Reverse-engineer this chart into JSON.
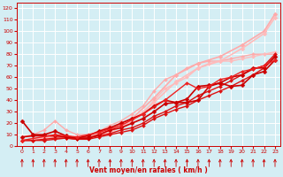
{
  "xlabel": "Vent moyen/en rafales ( km/h )",
  "bg_color": "#d4eef4",
  "grid_color": "#ffffff",
  "xlim": [
    -0.5,
    23.5
  ],
  "ylim": [
    0,
    125
  ],
  "yticks": [
    0,
    10,
    20,
    30,
    40,
    50,
    60,
    70,
    80,
    90,
    100,
    110,
    120
  ],
  "xticks": [
    0,
    1,
    2,
    3,
    4,
    5,
    6,
    7,
    8,
    9,
    10,
    11,
    12,
    13,
    14,
    15,
    16,
    17,
    18,
    19,
    20,
    21,
    22,
    23
  ],
  "lines": [
    {
      "x": [
        0,
        1,
        2,
        3,
        4,
        5,
        6,
        7,
        8,
        9,
        10,
        11,
        12,
        13,
        14,
        15,
        16,
        17,
        18,
        19,
        20,
        21,
        22,
        23
      ],
      "y": [
        5,
        5,
        5,
        6,
        7,
        6,
        6,
        8,
        10,
        12,
        14,
        18,
        24,
        28,
        32,
        35,
        40,
        44,
        48,
        52,
        57,
        62,
        68,
        78
      ],
      "color": "#dd1111",
      "lw": 1.0,
      "marker": "D",
      "ms": 2.0
    },
    {
      "x": [
        0,
        1,
        2,
        3,
        4,
        5,
        6,
        7,
        8,
        9,
        10,
        11,
        12,
        13,
        14,
        15,
        16,
        17,
        18,
        19,
        20,
        21,
        22,
        23
      ],
      "y": [
        5,
        5,
        6,
        7,
        7,
        6,
        7,
        9,
        11,
        14,
        16,
        20,
        26,
        30,
        35,
        38,
        44,
        48,
        52,
        57,
        62,
        67,
        70,
        80
      ],
      "color": "#dd1111",
      "lw": 1.0,
      "marker": "D",
      "ms": 2.0
    },
    {
      "x": [
        0,
        1,
        2,
        3,
        4,
        5,
        6,
        7,
        8,
        9,
        10,
        11,
        12,
        13,
        14,
        15,
        16,
        17,
        18,
        19,
        20,
        21,
        22,
        23
      ],
      "y": [
        8,
        9,
        9,
        9,
        8,
        7,
        7,
        10,
        14,
        16,
        20,
        24,
        30,
        37,
        38,
        38,
        40,
        52,
        55,
        52,
        53,
        62,
        65,
        75
      ],
      "color": "#cc0000",
      "lw": 1.2,
      "marker": "D",
      "ms": 2.5
    },
    {
      "x": [
        0,
        1,
        2,
        3,
        4,
        5,
        6,
        7,
        8,
        9,
        10,
        11,
        12,
        13,
        14,
        15,
        16,
        17,
        18,
        19,
        20,
        21,
        22,
        23
      ],
      "y": [
        22,
        10,
        10,
        13,
        9,
        7,
        9,
        13,
        16,
        20,
        24,
        28,
        35,
        40,
        38,
        41,
        52,
        53,
        55,
        60,
        62,
        68,
        68,
        78
      ],
      "color": "#cc0000",
      "lw": 1.2,
      "marker": "D",
      "ms": 2.5
    },
    {
      "x": [
        0,
        3,
        5,
        7,
        9,
        11,
        13,
        15,
        16,
        17,
        18,
        19,
        20,
        21,
        22,
        23
      ],
      "y": [
        5,
        10,
        8,
        12,
        18,
        28,
        40,
        55,
        50,
        52,
        58,
        60,
        65,
        67,
        70,
        75
      ],
      "color": "#ee2222",
      "lw": 1.0,
      "marker": "D",
      "ms": 2.0
    },
    {
      "x": [
        0,
        1,
        2,
        3,
        4,
        5,
        6,
        7,
        8,
        9,
        10,
        11,
        12,
        13,
        14,
        15,
        16,
        17,
        18,
        19,
        20,
        21,
        22,
        23
      ],
      "y": [
        8,
        10,
        14,
        22,
        14,
        10,
        10,
        13,
        18,
        22,
        28,
        35,
        48,
        58,
        62,
        68,
        72,
        74,
        74,
        76,
        78,
        80,
        80,
        80
      ],
      "color": "#ffaaaa",
      "lw": 1.0,
      "marker": "D",
      "ms": 2.0
    },
    {
      "x": [
        0,
        1,
        2,
        3,
        4,
        5,
        6,
        7,
        8,
        9,
        10,
        11,
        12,
        13,
        14,
        15,
        16,
        17,
        18,
        19,
        20,
        21,
        22,
        23
      ],
      "y": [
        5,
        6,
        8,
        10,
        8,
        6,
        7,
        10,
        14,
        18,
        22,
        28,
        40,
        50,
        55,
        60,
        68,
        72,
        74,
        74,
        76,
        78,
        80,
        82
      ],
      "color": "#ffbbbb",
      "lw": 1.0,
      "marker": "D",
      "ms": 2.0
    },
    {
      "x": [
        0,
        2,
        4,
        6,
        8,
        10,
        12,
        14,
        16,
        18,
        20,
        22,
        23
      ],
      "y": [
        5,
        8,
        8,
        8,
        14,
        24,
        42,
        62,
        72,
        78,
        88,
        100,
        115
      ],
      "color": "#ffaaaa",
      "lw": 1.2,
      "marker": "D",
      "ms": 2.5
    },
    {
      "x": [
        0,
        2,
        4,
        6,
        8,
        10,
        12,
        14,
        16,
        18,
        20,
        22,
        23
      ],
      "y": [
        5,
        7,
        7,
        7,
        12,
        22,
        38,
        56,
        68,
        74,
        85,
        98,
        112
      ],
      "color": "#ffbbbb",
      "lw": 1.2,
      "marker": "D",
      "ms": 2.5
    }
  ],
  "wind_arrows_x": [
    0,
    1,
    2,
    3,
    4,
    5,
    6,
    7,
    8,
    9,
    10,
    11,
    12,
    13,
    14,
    15,
    16,
    17,
    18,
    19,
    20,
    21,
    22,
    23
  ],
  "arrow_color": "#cc0000"
}
